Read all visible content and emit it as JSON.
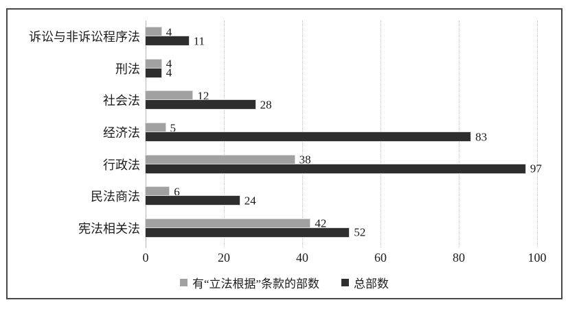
{
  "chart_data": {
    "type": "bar",
    "orientation": "horizontal",
    "title": "",
    "xlabel": "",
    "ylabel": "",
    "categories": [
      "诉讼与非诉讼程序法",
      "刑法",
      "社会法",
      "经济法",
      "行政法",
      "民法商法",
      "宪法相关法"
    ],
    "series": [
      {
        "name": "有“立法根据”条款的部数",
        "color": "#a1a1a1",
        "values": [
          4,
          4,
          12,
          5,
          38,
          6,
          42
        ]
      },
      {
        "name": "总部数",
        "color": "#2e2e2e",
        "values": [
          11,
          4,
          28,
          83,
          97,
          24,
          52
        ]
      }
    ],
    "xlim": [
      0,
      100
    ],
    "xticks": [
      0,
      20,
      40,
      60,
      80,
      100
    ],
    "grid": "vertical-dotted",
    "legend_position": "bottom",
    "data_labels": "shown-at-bar-end"
  },
  "colors": {
    "background": "#ffffff",
    "frame_border": "#474747",
    "gridline": "#c8c8c8",
    "zero_axis_line": "#b5b5b5",
    "text": "#1c1c1c",
    "series1_fill": "#a1a1a1",
    "series2_fill": "#2e2e2e"
  }
}
